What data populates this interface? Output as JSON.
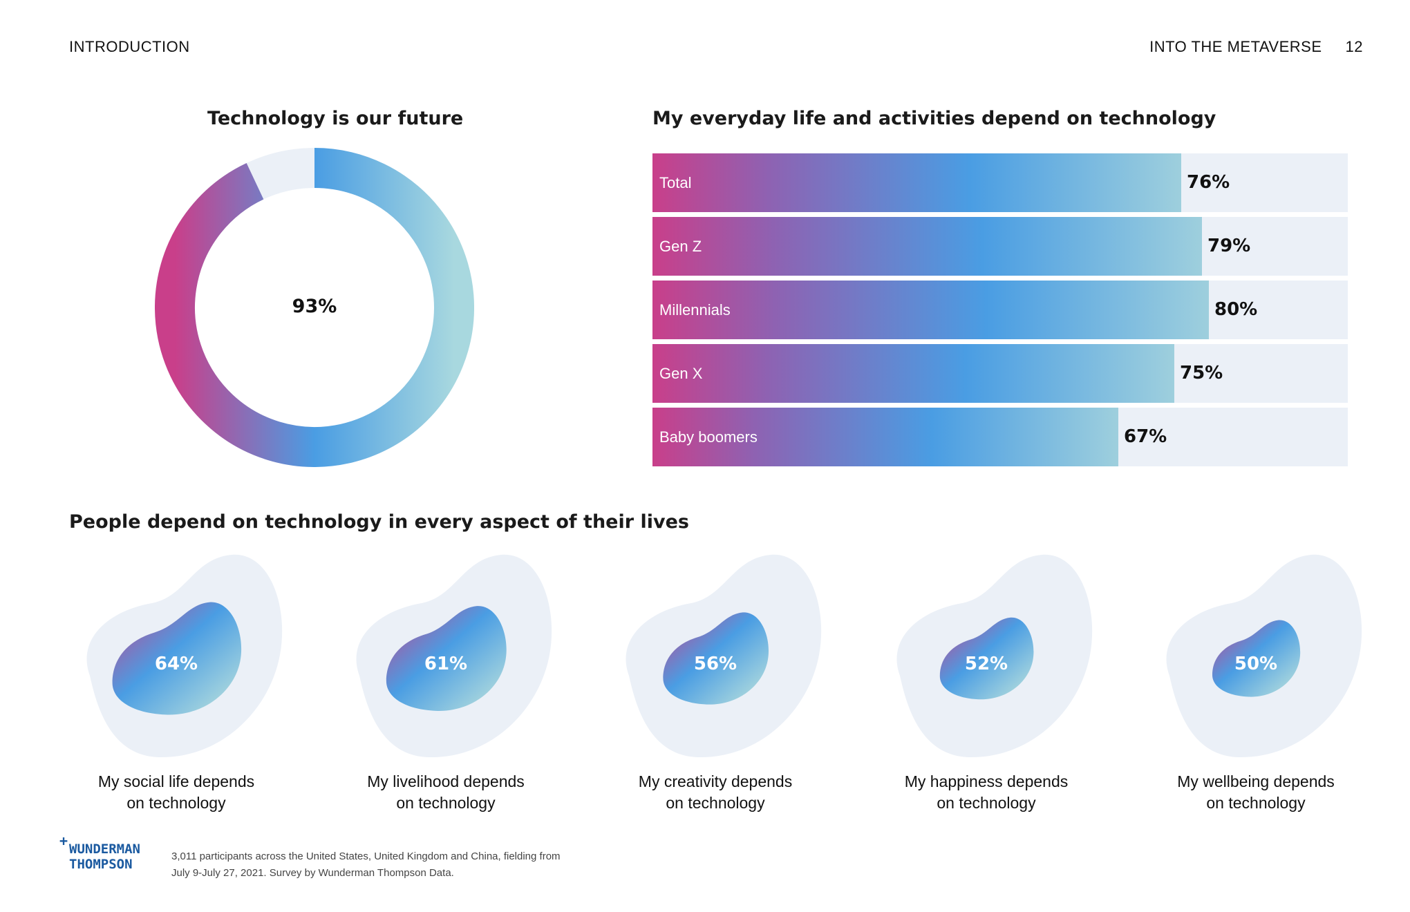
{
  "header": {
    "section": "INTRODUCTION",
    "publication": "INTO THE METAVERSE",
    "page_number": "12"
  },
  "colors": {
    "gradient_magenta": "#c93f8a",
    "gradient_purple": "#8e62b2",
    "gradient_blue": "#4a9de3",
    "gradient_teal": "#9ecfdd",
    "track": "#ebf0f7",
    "logo_blue": "#1b5aa0"
  },
  "chart_data": [
    {
      "type": "pie",
      "title": "Technology is our future",
      "values": [
        93,
        7
      ],
      "value_label": "93%"
    },
    {
      "type": "bar",
      "title": "My everyday life and activities depend on technology",
      "orientation": "horizontal",
      "categories": [
        "Total",
        "Gen Z",
        "Millennials",
        "Gen X",
        "Baby boomers"
      ],
      "values": [
        76,
        79,
        80,
        75,
        67
      ],
      "value_labels": [
        "76%",
        "79%",
        "80%",
        "75%",
        "67%"
      ],
      "xlim": [
        0,
        100
      ]
    },
    {
      "type": "bar",
      "title": "People depend on technology in every aspect of their lives",
      "categories": [
        "My social life depends on technology",
        "My livelihood depends on technology",
        "My creativity depends on technology",
        "My happiness depends on technology",
        "My wellbeing depends on technology"
      ],
      "values": [
        64,
        61,
        56,
        52,
        50
      ],
      "value_labels": [
        "64%",
        "61%",
        "56%",
        "52%",
        "50%"
      ]
    }
  ],
  "blob_captions": [
    [
      "My social life depends",
      "on technology"
    ],
    [
      "My livelihood depends",
      "on technology"
    ],
    [
      "My creativity depends",
      "on technology"
    ],
    [
      "My happiness depends",
      "on technology"
    ],
    [
      "My wellbeing depends",
      "on technology"
    ]
  ],
  "footer": {
    "logo_line1": "WUNDERMAN",
    "logo_line2": "THOMPSON",
    "logo_plus": "+",
    "note_line1": "3,011 participants across the United States, United Kingdom and China, fielding from",
    "note_line2": "July 9-July 27, 2021. Survey by Wunderman Thompson Data."
  }
}
